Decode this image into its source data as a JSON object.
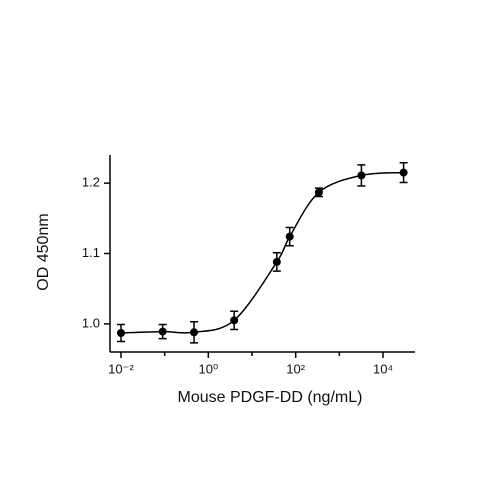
{
  "chart_data": {
    "type": "scatter",
    "x_label": "Mouse PDGF-DD (ng/mL)",
    "y_label": "OD 450nm",
    "x": [
      0.01,
      0.09,
      0.47,
      3.9,
      37,
      73,
      340,
      3200,
      29600
    ],
    "series": [
      {
        "color": "#000000",
        "values": [
          0.987,
          0.989,
          0.988,
          1.005,
          1.088,
          1.124,
          1.187,
          1.211,
          1.215
        ],
        "errors": [
          0.012,
          0.01,
          0.015,
          0.013,
          0.013,
          0.013,
          0.006,
          0.015,
          0.014
        ]
      }
    ],
    "x_log": true,
    "xlim": [
      0.0056,
      54000
    ],
    "xticks": [
      {
        "value": 0.01,
        "label": "10⁻²"
      },
      {
        "value": 1,
        "label": "10⁰"
      },
      {
        "value": 100,
        "label": "10²"
      },
      {
        "value": 10000,
        "label": "10⁴"
      }
    ],
    "xminor_ticks": [
      0.1,
      10,
      1000
    ],
    "ylim": [
      0.96,
      1.24
    ],
    "yticks": [
      {
        "value": 1,
        "label": "1.0"
      },
      1.1,
      1.2
    ],
    "grid": false
  }
}
